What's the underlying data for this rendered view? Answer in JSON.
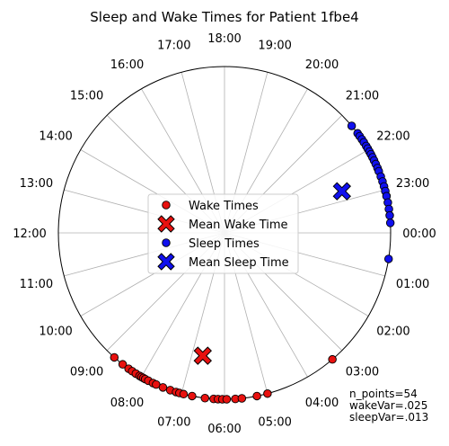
{
  "chart_data": {
    "type": "scatter",
    "projection": "polar",
    "title": "Sleep and Wake Times for Patient 1fbe4",
    "hour_labels": [
      "00:00",
      "01:00",
      "02:00",
      "03:00",
      "04:00",
      "05:00",
      "06:00",
      "07:00",
      "08:00",
      "09:00",
      "10:00",
      "11:00",
      "12:00",
      "13:00",
      "14:00",
      "15:00",
      "16:00",
      "17:00",
      "18:00",
      "19:00",
      "20:00",
      "21:00",
      "22:00",
      "23:00"
    ],
    "radial_range": [
      0,
      1
    ],
    "grid": true,
    "legend": {
      "placement": "center",
      "entries": [
        "Wake Times",
        "Mean Wake Time",
        "Sleep Times",
        "Mean Sleep Time"
      ]
    },
    "colors": {
      "wake": "#e8110f",
      "sleep": "#1010ee",
      "edge": "#000000",
      "grid": "#b0b0b0"
    },
    "series": [
      {
        "name": "Wake Times",
        "marker": "circle",
        "points": [
          {
            "hour": 8.77,
            "r": 1.0
          },
          {
            "hour": 8.52,
            "r": 1.0
          },
          {
            "hour": 8.35,
            "r": 1.0
          },
          {
            "hour": 8.25,
            "r": 1.0
          },
          {
            "hour": 8.15,
            "r": 1.0
          },
          {
            "hour": 8.05,
            "r": 1.0
          },
          {
            "hour": 8.0,
            "r": 1.0
          },
          {
            "hour": 7.95,
            "r": 1.0
          },
          {
            "hour": 7.9,
            "r": 1.0
          },
          {
            "hour": 7.82,
            "r": 1.0
          },
          {
            "hour": 7.7,
            "r": 1.0
          },
          {
            "hour": 7.62,
            "r": 1.0
          },
          {
            "hour": 7.45,
            "r": 1.0
          },
          {
            "hour": 7.27,
            "r": 1.0
          },
          {
            "hour": 7.13,
            "r": 1.0
          },
          {
            "hour": 7.05,
            "r": 1.0
          },
          {
            "hour": 6.95,
            "r": 1.0
          },
          {
            "hour": 6.75,
            "r": 1.0
          },
          {
            "hour": 6.45,
            "r": 1.0
          },
          {
            "hour": 6.25,
            "r": 1.0
          },
          {
            "hour": 6.15,
            "r": 1.0
          },
          {
            "hour": 6.05,
            "r": 1.0
          },
          {
            "hour": 5.95,
            "r": 1.0
          },
          {
            "hour": 5.75,
            "r": 1.0
          },
          {
            "hour": 5.6,
            "r": 1.0
          },
          {
            "hour": 5.25,
            "r": 1.0
          },
          {
            "hour": 5.0,
            "r": 1.0
          },
          {
            "hour": 3.3,
            "r": 1.0
          }
        ]
      },
      {
        "name": "Mean Wake Time",
        "marker": "x",
        "points": [
          {
            "hour": 6.67,
            "r": 0.75
          }
        ]
      },
      {
        "name": "Sleep Times",
        "marker": "circle",
        "points": [
          {
            "hour": 21.33,
            "r": 1.0
          },
          {
            "hour": 21.55,
            "r": 1.0
          },
          {
            "hour": 21.63,
            "r": 1.0
          },
          {
            "hour": 21.72,
            "r": 1.0
          },
          {
            "hour": 21.8,
            "r": 1.0
          },
          {
            "hour": 21.9,
            "r": 1.0
          },
          {
            "hour": 21.97,
            "r": 1.0
          },
          {
            "hour": 22.05,
            "r": 1.0
          },
          {
            "hour": 22.12,
            "r": 1.0
          },
          {
            "hour": 22.2,
            "r": 1.0
          },
          {
            "hour": 22.28,
            "r": 1.0
          },
          {
            "hour": 22.37,
            "r": 1.0
          },
          {
            "hour": 22.47,
            "r": 1.0
          },
          {
            "hour": 22.55,
            "r": 1.0
          },
          {
            "hour": 22.68,
            "r": 1.0
          },
          {
            "hour": 22.8,
            "r": 1.0
          },
          {
            "hour": 22.92,
            "r": 1.0
          },
          {
            "hour": 23.03,
            "r": 1.0
          },
          {
            "hour": 23.15,
            "r": 1.0
          },
          {
            "hour": 23.3,
            "r": 1.0
          },
          {
            "hour": 23.45,
            "r": 1.0
          },
          {
            "hour": 23.6,
            "r": 1.0
          },
          {
            "hour": 23.77,
            "r": 1.0
          },
          {
            "hour": 0.6,
            "r": 1.0
          }
        ]
      },
      {
        "name": "Mean Sleep Time",
        "marker": "x",
        "points": [
          {
            "hour": 22.7,
            "r": 0.75
          }
        ]
      }
    ],
    "annotation": [
      "n_points=54",
      "wakeVar=.025",
      "sleepVar=.013"
    ]
  }
}
